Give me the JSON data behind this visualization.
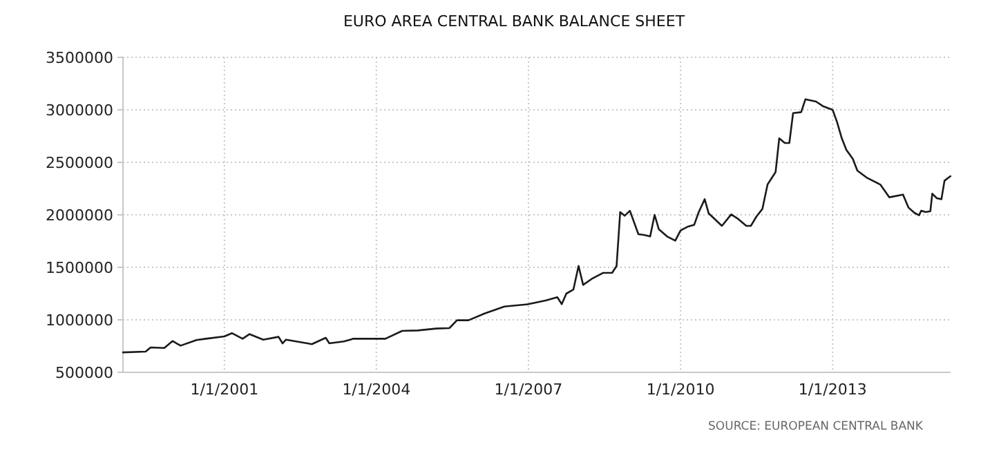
{
  "chart_data": {
    "type": "line",
    "title": "EURO AREA CENTRAL BANK BALANCE SHEET",
    "x": [
      "1999-01-01",
      "1999-06-13",
      "1999-07-19",
      "1999-10-26",
      "1999-12-24",
      "2000-02-20",
      "2000-06-14",
      "2000-08-21",
      "2001-01-01",
      "2001-02-25",
      "2001-05-12",
      "2001-07-01",
      "2001-10-08",
      "2002-01-26",
      "2002-02-24",
      "2002-03-21",
      "2002-08-21",
      "2002-09-23",
      "2003-01-01",
      "2003-01-27",
      "2003-05-12",
      "2003-07-19",
      "2003-10-26",
      "2004-03-06",
      "2004-07-05",
      "2004-10-26",
      "2005-03-07",
      "2005-06-10",
      "2005-08-04",
      "2005-10-26",
      "2006-02-20",
      "2006-07-12",
      "2007-01-01",
      "2007-05-05",
      "2007-07-28",
      "2007-08-29",
      "2007-10-01",
      "2007-11-21",
      "2007-12-28",
      "2008-01-30",
      "2008-04-01",
      "2008-06-21",
      "2008-08-26",
      "2008-09-27",
      "2008-10-23",
      "2008-11-24",
      "2009-01-01",
      "2009-03-03",
      "2009-04-16",
      "2009-05-27",
      "2009-06-28",
      "2009-07-28",
      "2009-09-26",
      "2009-11-24",
      "2010-01-01",
      "2010-02-20",
      "2010-04-09",
      "2010-05-12",
      "2010-06-24",
      "2010-07-23",
      "2010-08-28",
      "2010-10-26",
      "2011-01-01",
      "2011-02-20",
      "2011-04-20",
      "2011-05-23",
      "2011-07-01",
      "2011-08-14",
      "2011-09-20",
      "2011-11-17",
      "2011-12-13",
      "2012-01-22",
      "2012-02-24",
      "2012-03-22",
      "2012-05-19",
      "2012-06-19",
      "2012-09-03",
      "2012-10-23",
      "2013-01-01",
      "2013-02-02",
      "2013-03-08",
      "2013-04-10",
      "2013-05-27",
      "2013-06-28",
      "2013-09-03",
      "2013-12-10",
      "2014-02-13",
      "2014-05-23",
      "2014-07-01",
      "2014-08-14",
      "2014-09-16",
      "2014-10-01",
      "2014-11-03",
      "2014-12-06",
      "2014-12-20",
      "2015-01-22",
      "2015-02-24",
      "2015-03-18",
      "2015-04-30"
    ],
    "series": [
      {
        "color": "#1a1a1a",
        "values": [
          690000,
          697000,
          737000,
          732000,
          798000,
          754000,
          807000,
          820000,
          842000,
          873000,
          820000,
          864000,
          811000,
          838000,
          776000,
          811000,
          776000,
          768000,
          829000,
          776000,
          794000,
          820000,
          820000,
          820000,
          895000,
          899000,
          917000,
          921000,
          996000,
          996000,
          1061000,
          1127000,
          1149000,
          1184000,
          1215000,
          1149000,
          1250000,
          1289000,
          1513000,
          1333000,
          1390000,
          1447000,
          1447000,
          1513000,
          2026000,
          1991000,
          2039000,
          1816000,
          1807000,
          1794000,
          2000000,
          1864000,
          1794000,
          1754000,
          1851000,
          1886000,
          1904000,
          2026000,
          2149000,
          2013000,
          1969000,
          1895000,
          2004000,
          1961000,
          1895000,
          1895000,
          1982000,
          2057000,
          2289000,
          2408000,
          2728000,
          2684000,
          2684000,
          2969000,
          2978000,
          3101000,
          3079000,
          3035000,
          3000000,
          2882000,
          2728000,
          2618000,
          2531000,
          2421000,
          2355000,
          2289000,
          2167000,
          2193000,
          2070000,
          2018000,
          1996000,
          2039000,
          2026000,
          2035000,
          2202000,
          2158000,
          2149000,
          2325000,
          2368000
        ]
      }
    ],
    "xlim": [
      "1999-01-01",
      "2015-05-01"
    ],
    "xticks": [
      {
        "value": "2001-01-01",
        "label": "1/1/2001"
      },
      {
        "value": "2004-01-01",
        "label": "1/1/2004"
      },
      {
        "value": "2007-01-01",
        "label": "1/1/2007"
      },
      {
        "value": "2010-01-01",
        "label": "1/1/2010"
      },
      {
        "value": "2013-01-01",
        "label": "1/1/2013"
      }
    ],
    "ylim": [
      500000,
      3500000
    ],
    "yticks": [
      500000,
      1000000,
      1500000,
      2000000,
      2500000,
      3000000,
      3500000
    ],
    "grid": true,
    "line_style": "solid",
    "annotations": [
      "SOURCE: EUROPEAN CENTRAL BANK"
    ]
  }
}
